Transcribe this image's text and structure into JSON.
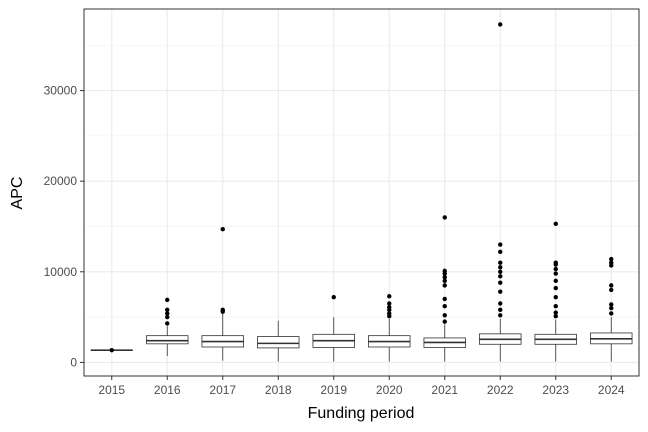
{
  "chart_data": {
    "type": "box",
    "title": "",
    "xlabel": "Funding period",
    "ylabel": "APC",
    "ylim": [
      -1500,
      39000
    ],
    "grid": true,
    "y_ticks": [
      0,
      10000,
      20000,
      30000
    ],
    "categories": [
      "2015",
      "2016",
      "2017",
      "2018",
      "2019",
      "2020",
      "2021",
      "2022",
      "2023",
      "2024"
    ],
    "boxes": [
      {
        "category": "2015",
        "q1": 1350,
        "median": 1350,
        "q3": 1350,
        "whisker_low": 1350,
        "whisker_high": 1350,
        "outliers": [
          1350
        ]
      },
      {
        "category": "2016",
        "q1": 2050,
        "median": 2400,
        "q3": 2950,
        "whisker_low": 700,
        "whisker_high": 4000,
        "outliers": [
          4300,
          5000,
          5400,
          5800,
          6900
        ]
      },
      {
        "category": "2017",
        "q1": 1700,
        "median": 2300,
        "q3": 2950,
        "whisker_low": 200,
        "whisker_high": 5400,
        "outliers": [
          5600,
          5800,
          14700
        ]
      },
      {
        "category": "2018",
        "q1": 1600,
        "median": 2100,
        "q3": 2850,
        "whisker_low": 100,
        "whisker_high": 4600,
        "outliers": []
      },
      {
        "category": "2019",
        "q1": 1650,
        "median": 2400,
        "q3": 3100,
        "whisker_low": 100,
        "whisker_high": 5000,
        "outliers": [
          7200
        ]
      },
      {
        "category": "2020",
        "q1": 1700,
        "median": 2300,
        "q3": 2950,
        "whisker_low": 100,
        "whisker_high": 4800,
        "outliers": [
          5100,
          5400,
          5800,
          6100,
          6500,
          7300
        ]
      },
      {
        "category": "2021",
        "q1": 1650,
        "median": 2200,
        "q3": 2700,
        "whisker_low": 100,
        "whisker_high": 4200,
        "outliers": [
          4500,
          5200,
          6200,
          7000,
          8500,
          9000,
          9400,
          9800,
          10100,
          16000
        ]
      },
      {
        "category": "2022",
        "q1": 2000,
        "median": 2550,
        "q3": 3150,
        "whisker_low": 100,
        "whisker_high": 4800,
        "outliers": [
          5200,
          5800,
          6500,
          7800,
          8800,
          9500,
          10000,
          10500,
          11000,
          12200,
          13000,
          37300
        ]
      },
      {
        "category": "2023",
        "q1": 2000,
        "median": 2550,
        "q3": 3100,
        "whisker_low": 100,
        "whisker_high": 4700,
        "outliers": [
          5100,
          5500,
          6200,
          7200,
          8200,
          9000,
          9800,
          10300,
          10800,
          11000,
          15300
        ]
      },
      {
        "category": "2024",
        "q1": 2050,
        "median": 2600,
        "q3": 3250,
        "whisker_low": 100,
        "whisker_high": 5000,
        "outliers": [
          5400,
          6000,
          6400,
          8000,
          8500,
          10700,
          11000,
          11400
        ]
      }
    ]
  }
}
